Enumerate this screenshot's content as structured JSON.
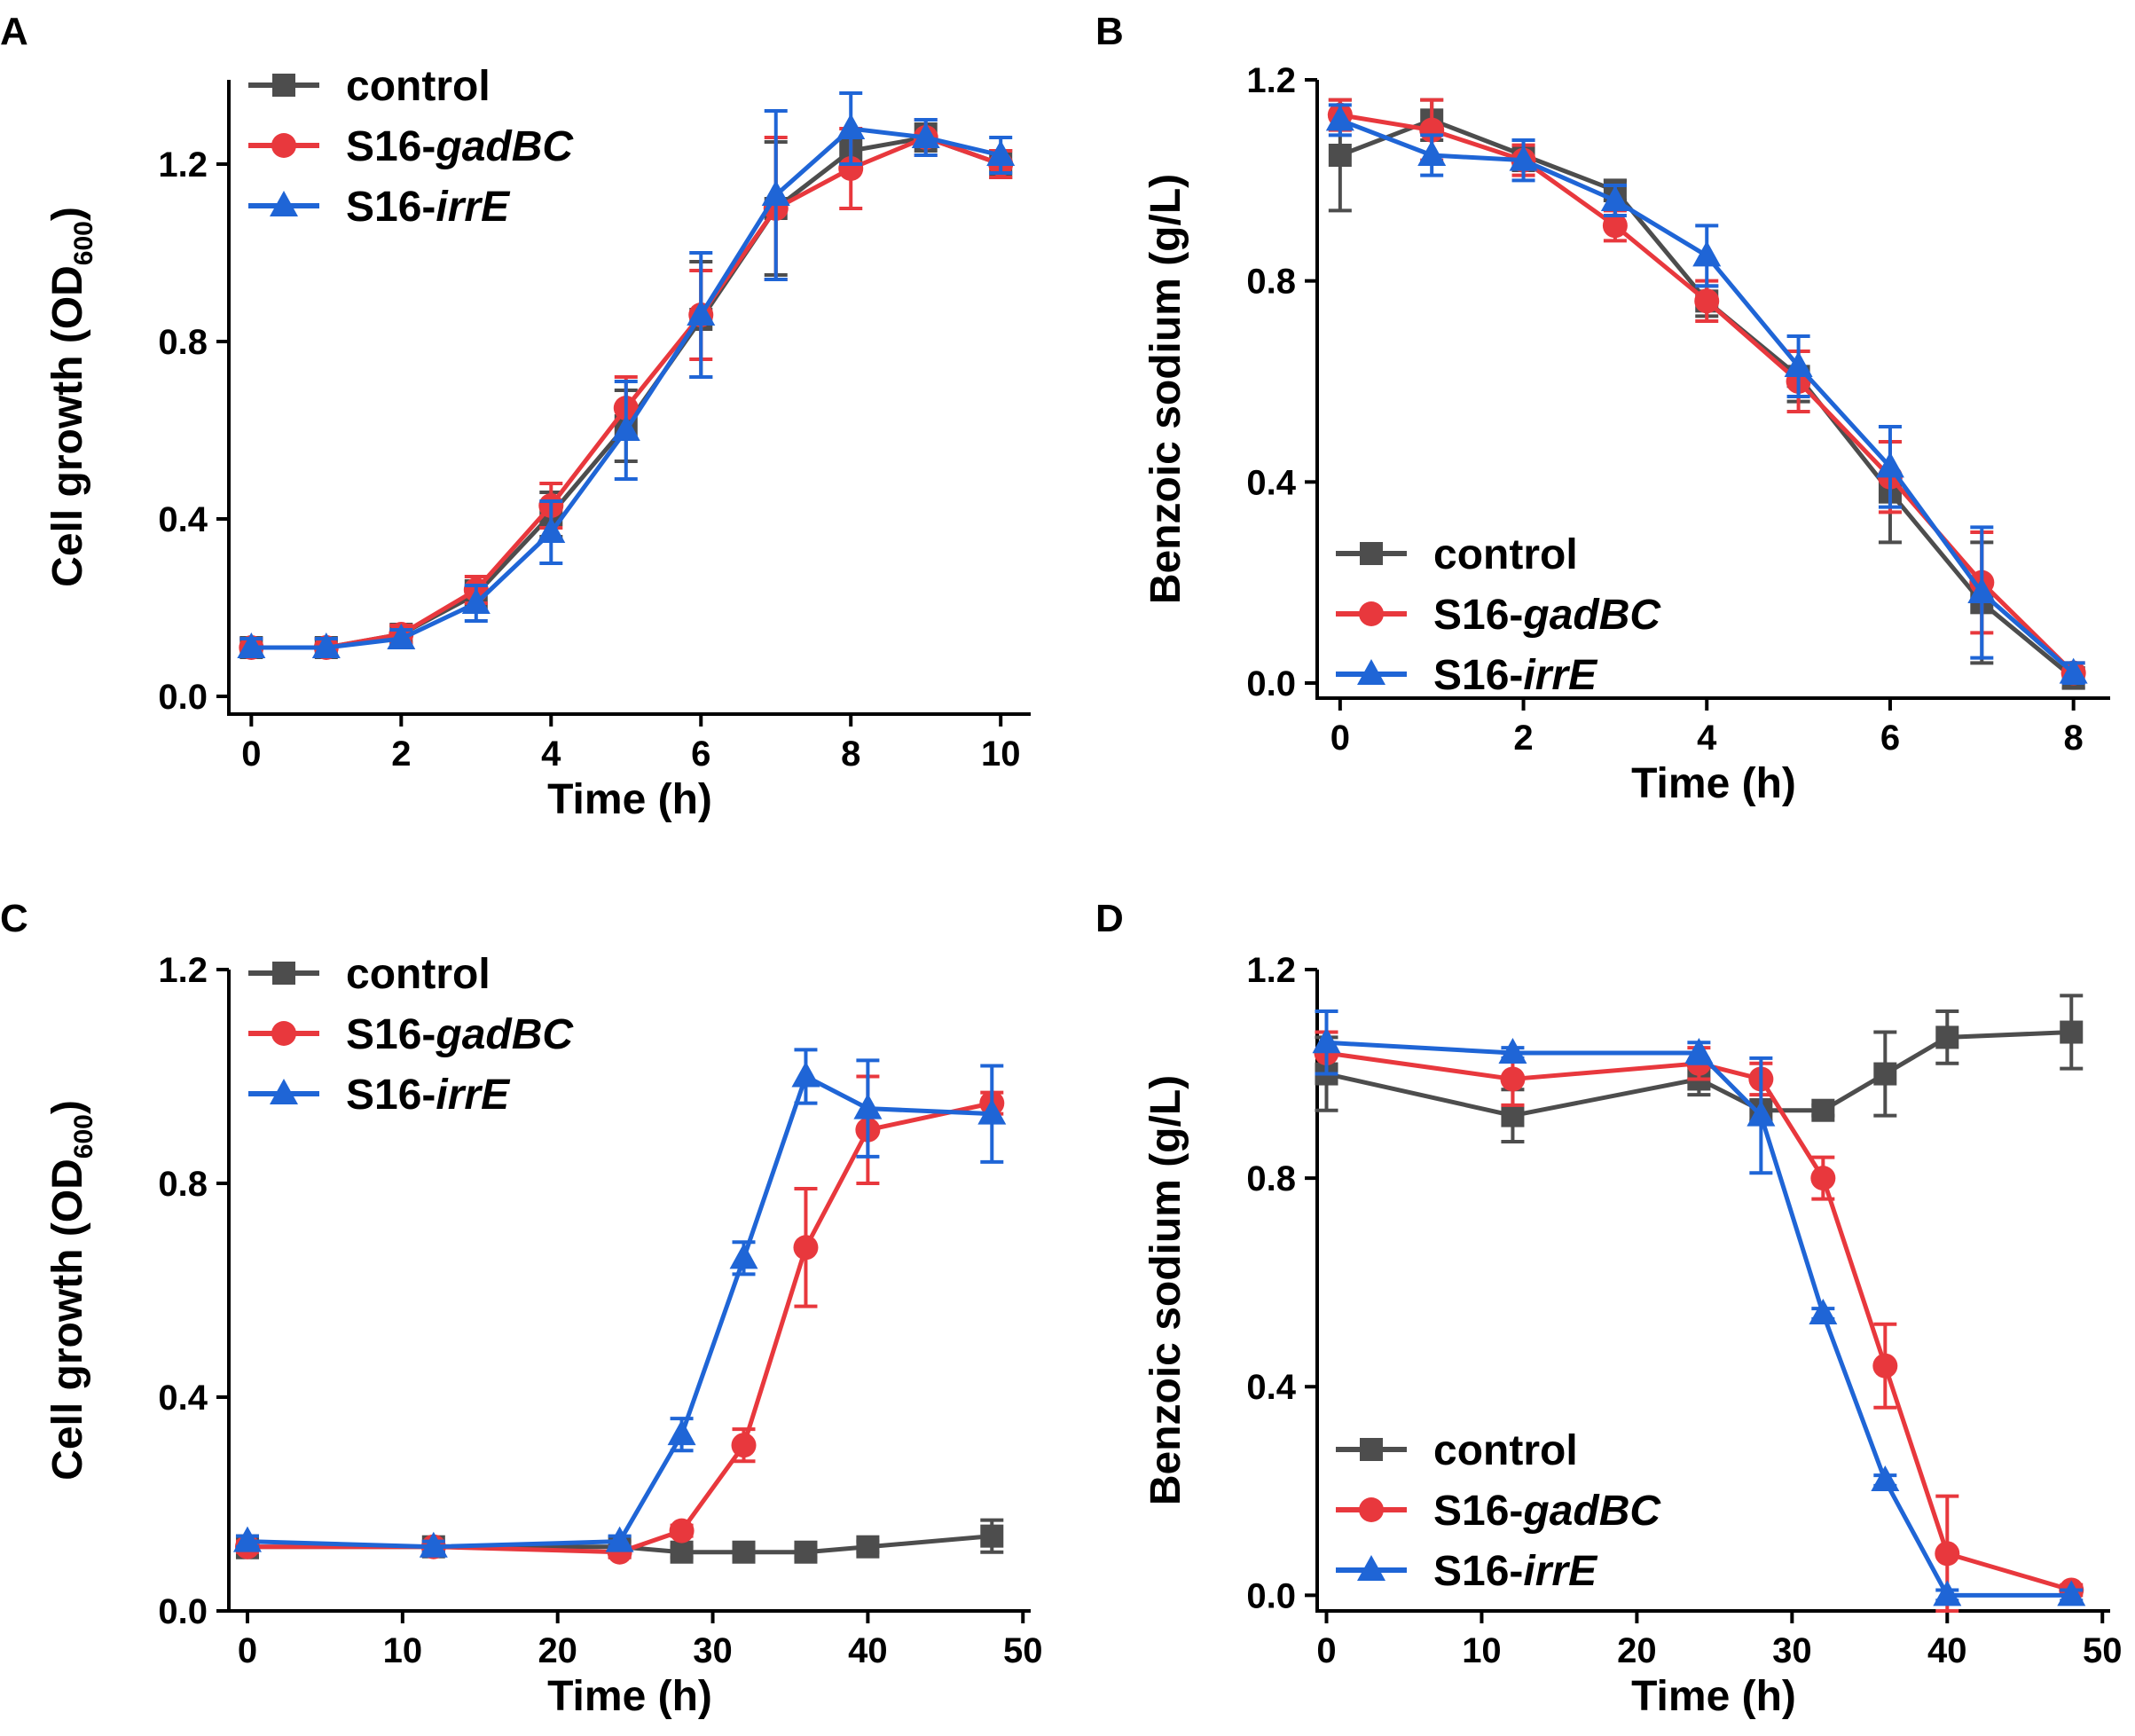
{
  "figure": {
    "panels": [
      "A",
      "B",
      "C",
      "D"
    ]
  },
  "chart_data": [
    {
      "panel": "A",
      "type": "line",
      "ylabel_main": "Cell growth (OD",
      "ylabel_sub": "600",
      "ylabel_close": ")",
      "xlabel": "Time (h)",
      "xlim": [
        -0.3,
        10.4
      ],
      "ylim": [
        -0.04,
        1.39
      ],
      "xticks": [
        0,
        2,
        4,
        6,
        8,
        10
      ],
      "xtick_labels": [
        "0",
        "2",
        "4",
        "6",
        "8",
        "10"
      ],
      "yticks": [
        0.0,
        0.4,
        0.8,
        1.2
      ],
      "ytick_labels": [
        "0.0",
        "0.4",
        "0.8",
        "1.2"
      ],
      "legend_position": "top-left",
      "series": [
        {
          "name_plain": "control",
          "name_prefix": "control",
          "name_italic": "",
          "color": "#4d4d4d",
          "marker": "square",
          "x": [
            0,
            1,
            2,
            3,
            4,
            5,
            6,
            7,
            8,
            9,
            10
          ],
          "y": [
            0.11,
            0.11,
            0.14,
            0.23,
            0.41,
            0.61,
            0.85,
            1.1,
            1.23,
            1.26,
            1.2
          ],
          "err": [
            0.02,
            0.02,
            0.02,
            0.03,
            0.05,
            0.08,
            0.13,
            0.15,
            0.03,
            0.03,
            0.03
          ]
        },
        {
          "name_plain": "S16-gadBC",
          "name_prefix": "S16-",
          "name_italic": "gadBC",
          "color": "#e8383d",
          "marker": "circle",
          "x": [
            0,
            1,
            2,
            3,
            4,
            5,
            6,
            7,
            8,
            9,
            10
          ],
          "y": [
            0.11,
            0.11,
            0.14,
            0.24,
            0.43,
            0.65,
            0.86,
            1.1,
            1.19,
            1.26,
            1.2
          ],
          "err": [
            0.02,
            0.02,
            0.02,
            0.03,
            0.05,
            0.07,
            0.1,
            0.16,
            0.09,
            0.04,
            0.03
          ]
        },
        {
          "name_plain": "S16-irrE",
          "name_prefix": "S16-",
          "name_italic": "irrE",
          "color": "#1f65d6",
          "marker": "triangle",
          "x": [
            0,
            1,
            2,
            3,
            4,
            5,
            6,
            7,
            8,
            9,
            10
          ],
          "y": [
            0.11,
            0.11,
            0.13,
            0.21,
            0.37,
            0.6,
            0.86,
            1.13,
            1.28,
            1.26,
            1.22
          ],
          "err": [
            0.02,
            0.02,
            0.02,
            0.04,
            0.07,
            0.11,
            0.14,
            0.19,
            0.08,
            0.04,
            0.04
          ]
        }
      ]
    },
    {
      "panel": "B",
      "type": "line",
      "ylabel_main": "Benzoic sodium (g/L)",
      "ylabel_sub": "",
      "ylabel_close": "",
      "xlabel": "Time (h)",
      "xlim": [
        -0.25,
        8.4
      ],
      "ylim": [
        -0.03,
        1.2
      ],
      "xticks": [
        0,
        2,
        4,
        6,
        8
      ],
      "xtick_labels": [
        "0",
        "2",
        "4",
        "6",
        "8"
      ],
      "yticks": [
        0.0,
        0.4,
        0.8,
        1.2
      ],
      "ytick_labels": [
        "0.0",
        "0.4",
        "0.8",
        "1.2"
      ],
      "legend_position": "bottom-left",
      "series": [
        {
          "name_plain": "control",
          "name_prefix": "control",
          "name_italic": "",
          "color": "#4d4d4d",
          "marker": "square",
          "x": [
            0,
            1,
            2,
            3,
            4,
            5,
            6,
            7,
            8
          ],
          "y": [
            1.05,
            1.12,
            1.05,
            0.98,
            0.76,
            0.61,
            0.38,
            0.16,
            0.01
          ],
          "err": [
            0.11,
            0.04,
            0.03,
            0.02,
            0.03,
            0.05,
            0.1,
            0.12,
            0.02
          ]
        },
        {
          "name_plain": "S16-gadBC",
          "name_prefix": "S16-",
          "name_italic": "gadBC",
          "color": "#e8383d",
          "marker": "circle",
          "x": [
            0,
            1,
            2,
            3,
            4,
            5,
            6,
            7,
            8
          ],
          "y": [
            1.13,
            1.1,
            1.04,
            0.91,
            0.76,
            0.6,
            0.41,
            0.2,
            0.02
          ],
          "err": [
            0.03,
            0.06,
            0.03,
            0.03,
            0.04,
            0.06,
            0.07,
            0.1,
            0.02
          ]
        },
        {
          "name_plain": "S16-irrE",
          "name_prefix": "S16-",
          "name_italic": "irrE",
          "color": "#1f65d6",
          "marker": "triangle",
          "x": [
            0,
            1,
            2,
            3,
            4,
            5,
            6,
            7,
            8
          ],
          "y": [
            1.12,
            1.05,
            1.04,
            0.96,
            0.85,
            0.63,
            0.43,
            0.18,
            0.02
          ],
          "err": [
            0.03,
            0.04,
            0.04,
            0.03,
            0.06,
            0.06,
            0.08,
            0.13,
            0.02
          ]
        }
      ]
    },
    {
      "panel": "C",
      "type": "line",
      "ylabel_main": "Cell growth (OD",
      "ylabel_sub": "600",
      "ylabel_close": ")",
      "xlabel": "Time (h)",
      "xlim": [
        -1.2,
        50.5
      ],
      "ylim": [
        0.0,
        1.2
      ],
      "xticks": [
        0,
        10,
        20,
        30,
        40,
        50
      ],
      "xtick_labels": [
        "0",
        "10",
        "20",
        "30",
        "40",
        "50"
      ],
      "yticks": [
        0.0,
        0.4,
        0.8,
        1.2
      ],
      "ytick_labels": [
        "0.0",
        "0.4",
        "0.8",
        "1.2"
      ],
      "legend_position": "top-left",
      "series": [
        {
          "name_plain": "control",
          "name_prefix": "control",
          "name_italic": "",
          "color": "#4d4d4d",
          "marker": "square",
          "x": [
            0,
            12,
            24,
            28,
            32,
            36,
            40,
            48
          ],
          "y": [
            0.12,
            0.12,
            0.12,
            0.11,
            0.11,
            0.11,
            0.12,
            0.14
          ],
          "err": [
            0.02,
            0.01,
            0.01,
            0.01,
            0.01,
            0.01,
            0.01,
            0.03
          ]
        },
        {
          "name_plain": "S16-gadBC",
          "name_prefix": "S16-",
          "name_italic": "gadBC",
          "color": "#e8383d",
          "marker": "circle",
          "x": [
            0,
            12,
            24,
            28,
            32,
            36,
            40,
            48
          ],
          "y": [
            0.12,
            0.12,
            0.11,
            0.15,
            0.31,
            0.68,
            0.9,
            0.95
          ],
          "err": [
            0.01,
            0.01,
            0.01,
            0.01,
            0.03,
            0.11,
            0.1,
            0.02
          ]
        },
        {
          "name_plain": "S16-irrE",
          "name_prefix": "S16-",
          "name_italic": "irrE",
          "color": "#1f65d6",
          "marker": "triangle",
          "x": [
            0,
            12,
            24,
            28,
            32,
            36,
            40,
            48
          ],
          "y": [
            0.13,
            0.12,
            0.13,
            0.33,
            0.66,
            1.0,
            0.94,
            0.93
          ],
          "err": [
            0.01,
            0.01,
            0.01,
            0.03,
            0.03,
            0.05,
            0.09,
            0.09
          ]
        }
      ]
    },
    {
      "panel": "D",
      "type": "line",
      "ylabel_main": "Benzoic sodium (g/L)",
      "ylabel_sub": "",
      "ylabel_close": "",
      "xlabel": "Time (h)",
      "xlim": [
        -0.6,
        50.5
      ],
      "ylim": [
        -0.03,
        1.2
      ],
      "xticks": [
        0,
        10,
        20,
        30,
        40,
        50
      ],
      "xtick_labels": [
        "0",
        "10",
        "20",
        "30",
        "40",
        "50"
      ],
      "yticks": [
        0.0,
        0.4,
        0.8,
        1.2
      ],
      "ytick_labels": [
        "0.0",
        "0.4",
        "0.8",
        "1.2"
      ],
      "legend_position": "bottom-left",
      "series": [
        {
          "name_plain": "control",
          "name_prefix": "control",
          "name_italic": "",
          "color": "#4d4d4d",
          "marker": "square",
          "x": [
            0,
            12,
            24,
            28,
            32,
            36,
            40,
            48
          ],
          "y": [
            1.0,
            0.92,
            0.99,
            0.93,
            0.93,
            1.0,
            1.07,
            1.08
          ],
          "err": [
            0.07,
            0.05,
            0.03,
            0.02,
            0.01,
            0.08,
            0.05,
            0.07
          ]
        },
        {
          "name_plain": "S16-gadBC",
          "name_prefix": "S16-",
          "name_italic": "gadBC",
          "color": "#e8383d",
          "marker": "circle",
          "x": [
            0,
            12,
            24,
            28,
            32,
            36,
            40,
            48
          ],
          "y": [
            1.04,
            0.99,
            1.02,
            0.99,
            0.8,
            0.44,
            0.08,
            0.01
          ],
          "err": [
            0.04,
            0.05,
            0.03,
            0.03,
            0.04,
            0.08,
            0.11,
            0.01
          ]
        },
        {
          "name_plain": "S16-irrE",
          "name_prefix": "S16-",
          "name_italic": "irrE",
          "color": "#1f65d6",
          "marker": "triangle",
          "x": [
            0,
            12,
            24,
            28,
            32,
            36,
            40,
            48
          ],
          "y": [
            1.06,
            1.04,
            1.04,
            0.92,
            0.54,
            0.22,
            0.0,
            0.0
          ],
          "err": [
            0.06,
            0.01,
            0.02,
            0.11,
            0.01,
            0.01,
            0.01,
            0.01
          ]
        }
      ]
    }
  ]
}
